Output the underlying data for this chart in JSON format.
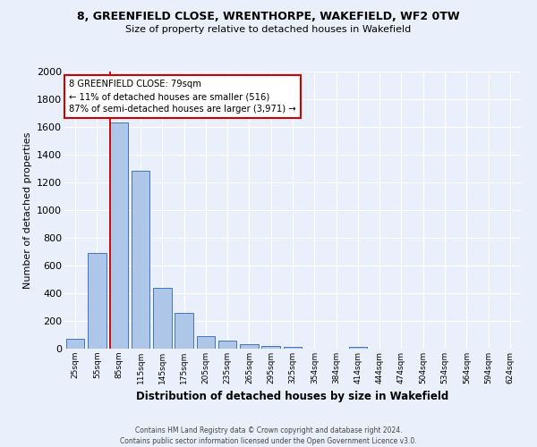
{
  "title": "8, GREENFIELD CLOSE, WRENTHORPE, WAKEFIELD, WF2 0TW",
  "subtitle": "Size of property relative to detached houses in Wakefield",
  "xlabel": "Distribution of detached houses by size in Wakefield",
  "ylabel": "Number of detached properties",
  "bar_labels": [
    "25sqm",
    "55sqm",
    "85sqm",
    "115sqm",
    "145sqm",
    "175sqm",
    "205sqm",
    "235sqm",
    "265sqm",
    "295sqm",
    "325sqm",
    "354sqm",
    "384sqm",
    "414sqm",
    "444sqm",
    "474sqm",
    "504sqm",
    "534sqm",
    "564sqm",
    "594sqm",
    "624sqm"
  ],
  "bar_values": [
    68,
    690,
    1635,
    1285,
    440,
    255,
    90,
    55,
    32,
    22,
    15,
    0,
    0,
    15,
    0,
    0,
    0,
    0,
    0,
    0,
    0
  ],
  "bar_color": "#aec6e8",
  "bar_edge_color": "#4472c4",
  "background_color": "#eaf0fb",
  "grid_color": "#ffffff",
  "vline_color": "#cc0000",
  "vline_x_index": 2,
  "annotation_text": "8 GREENFIELD CLOSE: 79sqm\n← 11% of detached houses are smaller (516)\n87% of semi-detached houses are larger (3,971) →",
  "annotation_box_color": "#ffffff",
  "annotation_box_edge_color": "#cc0000",
  "ylim": [
    0,
    2000
  ],
  "yticks": [
    0,
    200,
    400,
    600,
    800,
    1000,
    1200,
    1400,
    1600,
    1800,
    2000
  ],
  "footer_line1": "Contains HM Land Registry data © Crown copyright and database right 2024.",
  "footer_line2": "Contains public sector information licensed under the Open Government Licence v3.0."
}
